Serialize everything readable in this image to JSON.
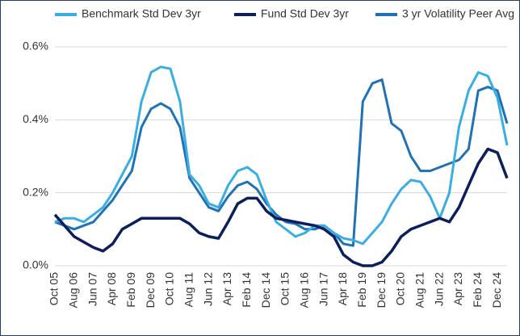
{
  "chart_data": {
    "type": "line",
    "categories": [
      "Oct 05",
      null,
      "Aug 06",
      null,
      "Jun 07",
      null,
      "Apr 08",
      null,
      "Feb 09",
      null,
      "Dec 09",
      null,
      "Oct 10",
      null,
      "Aug 11",
      null,
      "Jun 12",
      null,
      "Apr 13",
      null,
      "Feb 14",
      null,
      "Dec 14",
      null,
      "Oct 15",
      null,
      "Aug 16",
      null,
      "Jun 17",
      null,
      "Apr 18",
      null,
      "Feb 19",
      null,
      "Dec 19",
      null,
      "Oct 20",
      null,
      "Aug 21",
      null,
      "Jun 22",
      null,
      "Apr 23",
      null,
      "Feb 24",
      null,
      "Dec 24",
      null
    ],
    "series": [
      {
        "name": "Benchmark Std Dev 3yr",
        "color": "#3aaee3",
        "values": [
          0.12,
          0.13,
          0.13,
          0.12,
          0.14,
          0.16,
          0.2,
          0.25,
          0.3,
          0.45,
          0.53,
          0.545,
          0.54,
          0.45,
          0.25,
          0.22,
          0.17,
          0.16,
          0.22,
          0.26,
          0.27,
          0.25,
          0.18,
          0.12,
          0.1,
          0.08,
          0.09,
          0.11,
          0.11,
          0.09,
          0.075,
          0.07,
          0.06,
          0.09,
          0.12,
          0.17,
          0.21,
          0.235,
          0.23,
          0.19,
          0.13,
          0.2,
          0.38,
          0.48,
          0.53,
          0.52,
          0.46,
          0.33
        ]
      },
      {
        "name": "Fund Std Dev 3yr",
        "color": "#0b1f5c",
        "values": [
          0.14,
          0.11,
          0.08,
          0.065,
          0.05,
          0.04,
          0.06,
          0.1,
          0.115,
          0.13,
          0.13,
          0.13,
          0.13,
          0.13,
          0.115,
          0.09,
          0.08,
          0.075,
          0.12,
          0.17,
          0.185,
          0.185,
          0.15,
          0.13,
          0.125,
          0.12,
          0.115,
          0.11,
          0.1,
          0.08,
          0.03,
          0.01,
          0.0,
          0.0,
          0.01,
          0.04,
          0.08,
          0.1,
          0.11,
          0.12,
          0.13,
          0.12,
          0.16,
          0.22,
          0.28,
          0.32,
          0.31,
          0.24
        ]
      },
      {
        "name": "3 yr Volatility Peer Avg",
        "color": "#1f72b6",
        "values": [
          0.12,
          0.11,
          0.1,
          0.11,
          0.12,
          0.15,
          0.18,
          0.22,
          0.26,
          0.38,
          0.43,
          0.445,
          0.43,
          0.38,
          0.24,
          0.2,
          0.16,
          0.15,
          0.19,
          0.22,
          0.23,
          0.21,
          0.17,
          0.14,
          0.12,
          0.115,
          0.1,
          0.1,
          0.11,
          0.09,
          0.06,
          0.055,
          0.45,
          0.5,
          0.51,
          0.39,
          0.37,
          0.3,
          0.26,
          0.26,
          0.27,
          0.28,
          0.29,
          0.32,
          0.48,
          0.49,
          0.48,
          0.39
        ]
      }
    ],
    "ylim": [
      0,
      0.6
    ],
    "yticks": [
      {
        "value": 0,
        "label": "0.0%"
      },
      {
        "value": 0.2,
        "label": "0.2%"
      },
      {
        "value": 0.4,
        "label": "0.4%"
      },
      {
        "value": 0.6,
        "label": "0.6%"
      }
    ],
    "grid": true,
    "legend": "top"
  }
}
